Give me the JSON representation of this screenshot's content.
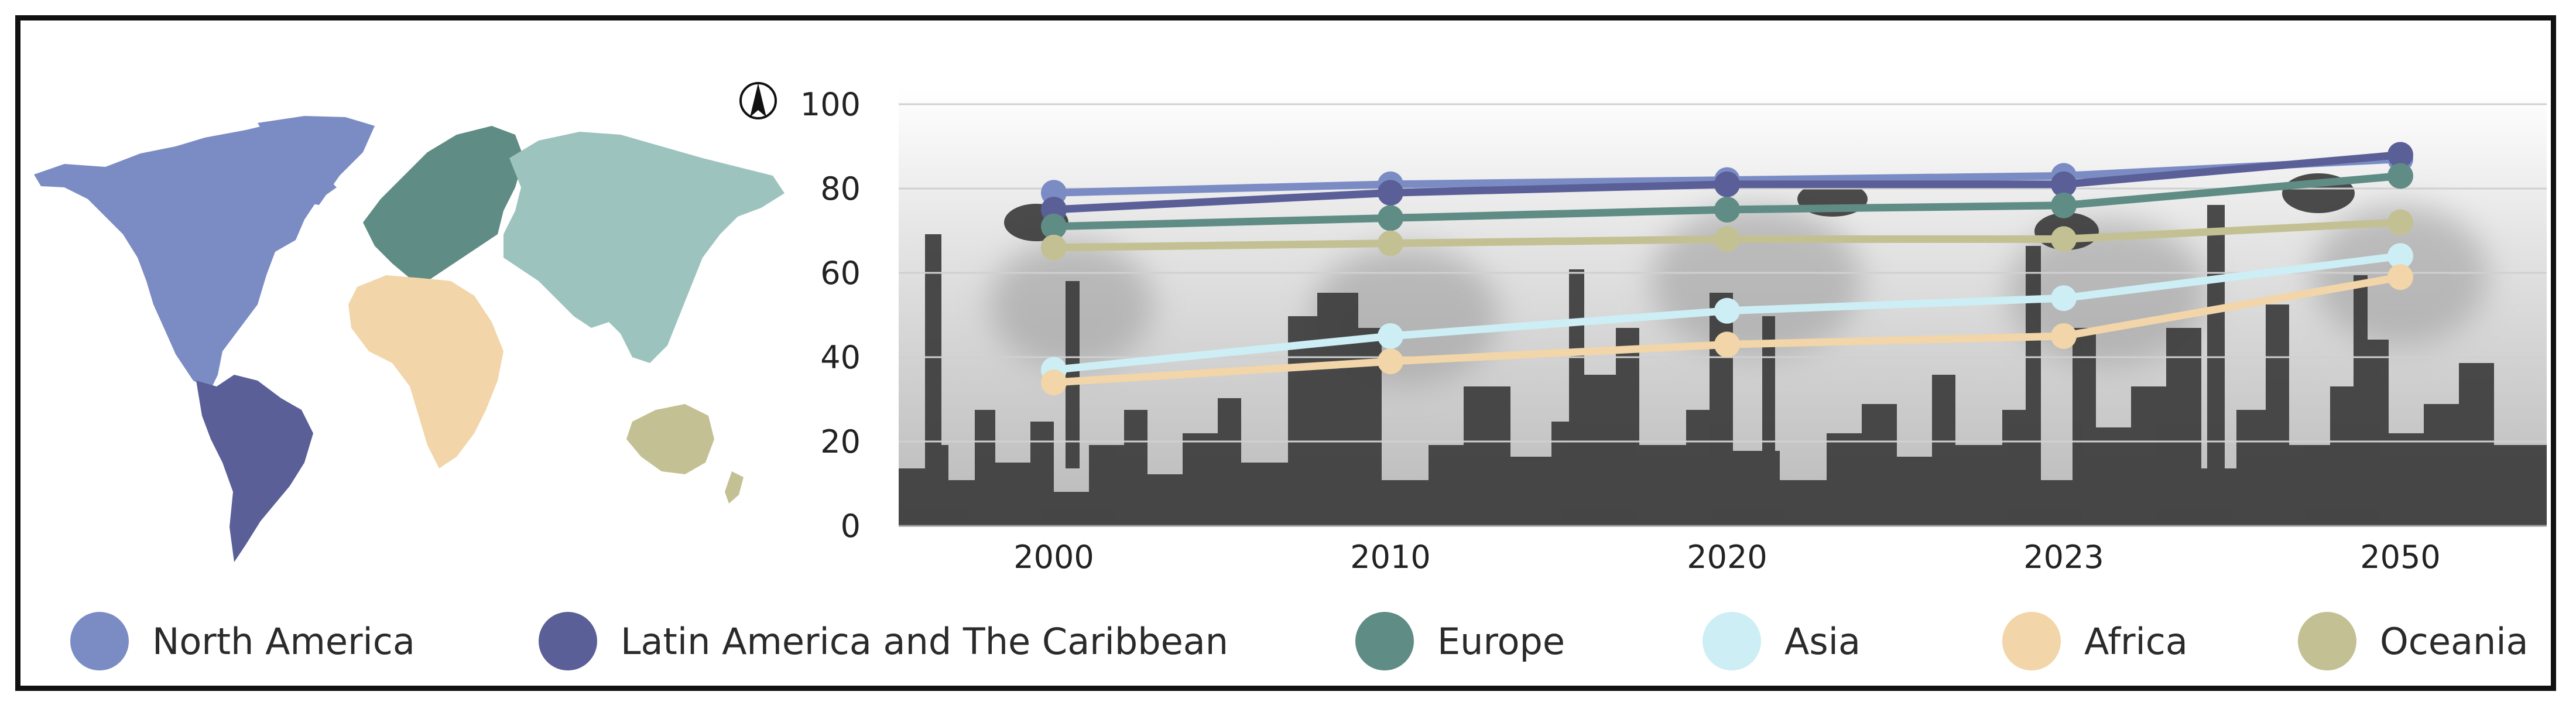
{
  "chart_data": {
    "type": "line",
    "title": "",
    "xlabel": "",
    "ylabel": "",
    "categories": [
      "2000",
      "2010",
      "2020",
      "2023",
      "2050"
    ],
    "ylim": [
      0,
      100
    ],
    "yticks": [
      "0",
      "20",
      "40",
      "60",
      "80",
      "100"
    ],
    "grid": true,
    "legend_position": "bottom",
    "series": [
      {
        "name": "North America",
        "color": "#7b8cc4",
        "values": [
          79,
          81,
          82,
          83,
          87
        ]
      },
      {
        "name": "Latin America and The Caribbean",
        "color": "#5a5f98",
        "values": [
          75,
          79,
          81,
          81,
          88
        ]
      },
      {
        "name": "Europe",
        "color": "#5f8c84",
        "values": [
          71,
          73,
          75,
          76,
          83
        ]
      },
      {
        "name": "Asia",
        "color": "#cdeef4",
        "values": [
          37,
          45,
          51,
          54,
          64
        ]
      },
      {
        "name": "Africa",
        "color": "#f2d5a8",
        "values": [
          34,
          39,
          43,
          45,
          59
        ]
      },
      {
        "name": "Oceania",
        "color": "#c3c193",
        "values": [
          66,
          67,
          68,
          68,
          72
        ]
      }
    ]
  },
  "map": {
    "north_arrow_icon": "north-arrow-icon",
    "regions": [
      {
        "name": "North America",
        "color": "#7b8cc4"
      },
      {
        "name": "Latin America and The Caribbean",
        "color": "#5a5f98"
      },
      {
        "name": "Europe",
        "color": "#5f8c84"
      },
      {
        "name": "Asia",
        "color": "#9cc3be"
      },
      {
        "name": "Africa",
        "color": "#f2d5a8"
      },
      {
        "name": "Oceania",
        "color": "#c3c193"
      }
    ]
  }
}
